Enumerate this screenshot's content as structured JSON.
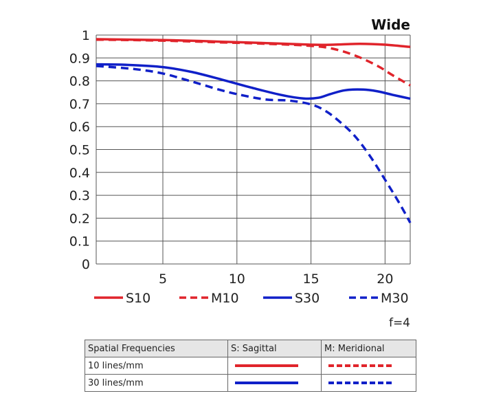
{
  "chart_data": {
    "type": "line",
    "title": "Wide",
    "xlabel": "",
    "ylabel": "",
    "xlim": [
      0.5,
      21.7
    ],
    "ylim": [
      0,
      1
    ],
    "xticks": [
      5,
      10,
      15,
      20
    ],
    "yticks": [
      0,
      0.1,
      0.2,
      0.3,
      0.4,
      0.5,
      0.6,
      0.7,
      0.8,
      0.9,
      1
    ],
    "ytick_labels": [
      "0",
      "0.1",
      "0.2",
      "0.3",
      "0.4",
      "0.5",
      "0.6",
      "0.7",
      "0.8",
      "0.9",
      "1"
    ],
    "grid": true,
    "legend_position": "bottom",
    "series": [
      {
        "name": "S10",
        "color": "#e0242b",
        "style": "solid",
        "points": [
          [
            0.5,
            0.982
          ],
          [
            3,
            0.98
          ],
          [
            6,
            0.977
          ],
          [
            9,
            0.971
          ],
          [
            12,
            0.965
          ],
          [
            15,
            0.958
          ],
          [
            16.5,
            0.958
          ],
          [
            18.3,
            0.962
          ],
          [
            20,
            0.958
          ],
          [
            21.7,
            0.948
          ]
        ]
      },
      {
        "name": "M10",
        "color": "#e0242b",
        "style": "dashed",
        "points": [
          [
            0.5,
            0.98
          ],
          [
            3,
            0.978
          ],
          [
            6,
            0.974
          ],
          [
            9,
            0.968
          ],
          [
            12,
            0.962
          ],
          [
            15,
            0.953
          ],
          [
            16.5,
            0.94
          ],
          [
            18,
            0.91
          ],
          [
            19.5,
            0.865
          ],
          [
            20.5,
            0.825
          ],
          [
            21.7,
            0.78
          ]
        ]
      },
      {
        "name": "S30",
        "color": "#1020c8",
        "style": "solid",
        "points": [
          [
            0.5,
            0.872
          ],
          [
            2.5,
            0.87
          ],
          [
            5,
            0.86
          ],
          [
            7,
            0.838
          ],
          [
            9,
            0.805
          ],
          [
            11,
            0.77
          ],
          [
            13,
            0.738
          ],
          [
            14.5,
            0.723
          ],
          [
            15.5,
            0.726
          ],
          [
            16.3,
            0.742
          ],
          [
            17.3,
            0.759
          ],
          [
            18.5,
            0.762
          ],
          [
            19.5,
            0.754
          ],
          [
            20.5,
            0.739
          ],
          [
            21.7,
            0.722
          ]
        ]
      },
      {
        "name": "M30",
        "color": "#1020c8",
        "style": "dashed",
        "points": [
          [
            0.5,
            0.865
          ],
          [
            3,
            0.852
          ],
          [
            5,
            0.832
          ],
          [
            7,
            0.796
          ],
          [
            9,
            0.758
          ],
          [
            10.5,
            0.735
          ],
          [
            12,
            0.718
          ],
          [
            13.5,
            0.714
          ],
          [
            15,
            0.697
          ],
          [
            16,
            0.668
          ],
          [
            17,
            0.618
          ],
          [
            18,
            0.556
          ],
          [
            19,
            0.47
          ],
          [
            20,
            0.368
          ],
          [
            21,
            0.262
          ],
          [
            21.7,
            0.18
          ]
        ]
      }
    ]
  },
  "aperture": "f=4",
  "table": {
    "headers": [
      "Spatial Frequencies",
      "S: Sagittal",
      "M: Meridional"
    ],
    "rows": [
      {
        "label": "10 lines/mm",
        "sagittal_color": "#e0242b",
        "meridional_color": "#e0242b"
      },
      {
        "label": "30 lines/mm",
        "sagittal_color": "#1020c8",
        "meridional_color": "#1020c8"
      }
    ]
  }
}
